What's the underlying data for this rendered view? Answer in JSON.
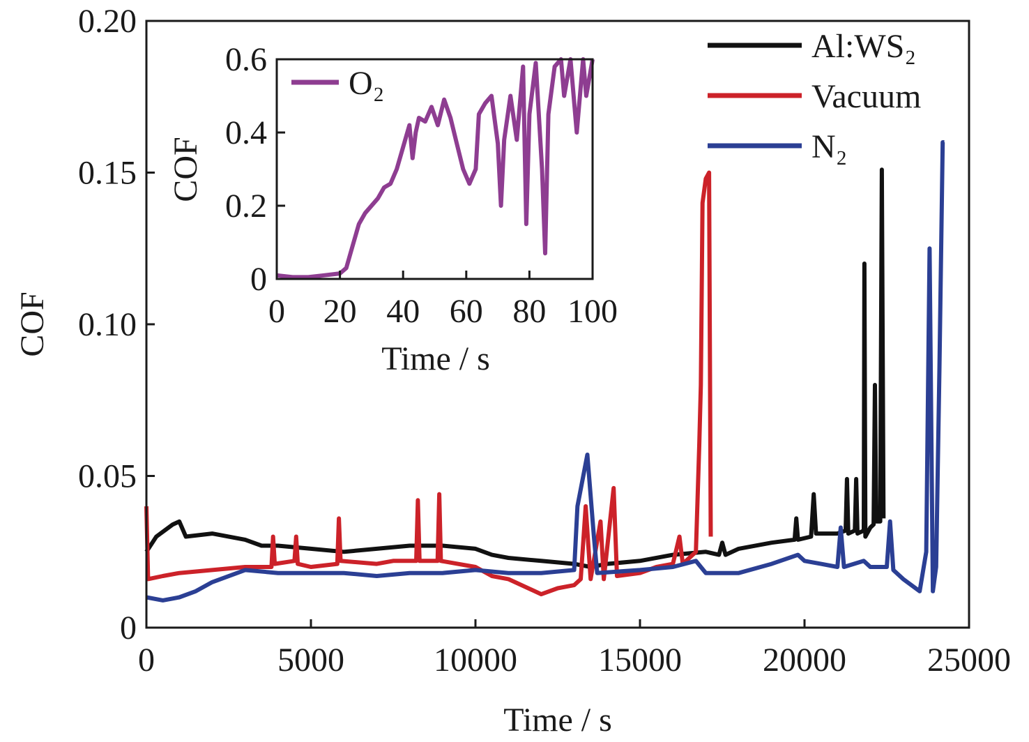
{
  "chart_data": [
    {
      "type": "line",
      "xlabel": "Time / s",
      "ylabel": "COF",
      "xlim": [
        0,
        25000
      ],
      "ylim": [
        0,
        0.2
      ],
      "xticks": [
        "0",
        "5000",
        "10000",
        "15000",
        "20000",
        "25000"
      ],
      "xtick_values": [
        0,
        5000,
        10000,
        15000,
        20000,
        25000
      ],
      "yticks": [
        "0",
        "0.05",
        "0.10",
        "0.15",
        "0.20"
      ],
      "ytick_values": [
        0,
        0.05,
        0.1,
        0.15,
        0.2
      ],
      "legend_placement": "top-right",
      "grid": false,
      "series": [
        {
          "name": "Al:WS₂",
          "color": "#111111",
          "x": [
            0,
            300,
            800,
            1000,
            1200,
            2000,
            3000,
            3500,
            4000,
            5000,
            6000,
            7000,
            8000,
            9000,
            10000,
            10500,
            11000,
            12000,
            13000,
            13500,
            14000,
            15000,
            16000,
            17000,
            17400,
            17500,
            17600,
            18000,
            19000,
            19700,
            19750,
            19800,
            20200,
            20280,
            20350,
            21000,
            21250,
            21290,
            21330,
            21530,
            21570,
            21610,
            21800,
            21820,
            21850,
            22000,
            22100,
            22140,
            22180,
            22300,
            22350,
            22400
          ],
          "y": [
            0.025,
            0.03,
            0.034,
            0.035,
            0.03,
            0.031,
            0.029,
            0.027,
            0.027,
            0.026,
            0.025,
            0.026,
            0.027,
            0.027,
            0.026,
            0.024,
            0.023,
            0.022,
            0.021,
            0.02,
            0.021,
            0.022,
            0.024,
            0.025,
            0.024,
            0.028,
            0.024,
            0.026,
            0.028,
            0.029,
            0.036,
            0.029,
            0.03,
            0.044,
            0.031,
            0.031,
            0.032,
            0.049,
            0.031,
            0.032,
            0.049,
            0.031,
            0.032,
            0.12,
            0.03,
            0.033,
            0.034,
            0.08,
            0.035,
            0.035,
            0.151,
            0.036
          ]
        },
        {
          "name": "Vacuum",
          "color": "#cc2229",
          "x": [
            0,
            50,
            500,
            1000,
            2000,
            3000,
            3800,
            3850,
            3900,
            4500,
            4550,
            4600,
            5000,
            5800,
            5850,
            5900,
            7000,
            7500,
            8200,
            8250,
            8300,
            8850,
            8900,
            8950,
            10000,
            10500,
            11000,
            12000,
            12500,
            13000,
            13200,
            13350,
            13500,
            13800,
            13900,
            14200,
            14300,
            15000,
            15500,
            16000,
            16200,
            16300,
            16500,
            16700,
            16800,
            16850,
            16900,
            17000,
            17100,
            17150
          ],
          "y": [
            0.04,
            0.016,
            0.017,
            0.018,
            0.019,
            0.02,
            0.02,
            0.03,
            0.021,
            0.022,
            0.03,
            0.021,
            0.02,
            0.021,
            0.036,
            0.022,
            0.021,
            0.022,
            0.022,
            0.042,
            0.022,
            0.022,
            0.044,
            0.022,
            0.02,
            0.017,
            0.016,
            0.011,
            0.013,
            0.014,
            0.016,
            0.04,
            0.016,
            0.035,
            0.016,
            0.046,
            0.017,
            0.018,
            0.02,
            0.021,
            0.03,
            0.021,
            0.023,
            0.025,
            0.06,
            0.08,
            0.14,
            0.148,
            0.15,
            0.03
          ]
        },
        {
          "name": "N₂",
          "color": "#2b3f94",
          "x": [
            0,
            500,
            1000,
            1500,
            2000,
            3000,
            4000,
            5000,
            6000,
            7000,
            8000,
            9000,
            10000,
            11000,
            12000,
            13000,
            13100,
            13400,
            13600,
            13700,
            15000,
            16000,
            16700,
            17000,
            18000,
            19000,
            19800,
            20000,
            20500,
            21000,
            21100,
            21200,
            21800,
            22000,
            22500,
            22600,
            22700,
            23000,
            23500,
            23700,
            23800,
            23900,
            24000,
            24100,
            24200,
            24250
          ],
          "y": [
            0.01,
            0.009,
            0.01,
            0.012,
            0.015,
            0.019,
            0.018,
            0.018,
            0.018,
            0.017,
            0.018,
            0.018,
            0.019,
            0.018,
            0.018,
            0.019,
            0.04,
            0.057,
            0.03,
            0.018,
            0.019,
            0.02,
            0.022,
            0.018,
            0.018,
            0.021,
            0.024,
            0.022,
            0.021,
            0.02,
            0.033,
            0.02,
            0.022,
            0.02,
            0.02,
            0.035,
            0.019,
            0.016,
            0.012,
            0.025,
            0.125,
            0.012,
            0.02,
            0.085,
            0.16,
            0.16
          ]
        }
      ]
    },
    {
      "type": "line",
      "xlabel": "Time / s",
      "ylabel": "COF",
      "xlim": [
        0,
        100
      ],
      "ylim": [
        0,
        0.6
      ],
      "xticks": [
        "0",
        "20",
        "40",
        "60",
        "80",
        "100"
      ],
      "xtick_values": [
        0,
        20,
        40,
        60,
        80,
        100
      ],
      "yticks": [
        "0",
        "0.2",
        "0.4",
        "0.6"
      ],
      "ytick_values": [
        0,
        0.2,
        0.4,
        0.6
      ],
      "legend_placement": "top-left",
      "grid": false,
      "series": [
        {
          "name": "O₂",
          "color": "#8e3d91",
          "x": [
            0,
            5,
            10,
            15,
            20,
            22,
            24,
            26,
            28,
            30,
            32,
            34,
            36,
            38,
            40,
            42,
            43,
            44,
            45,
            47,
            49,
            51,
            53,
            55,
            57,
            59,
            61,
            63,
            64,
            66,
            68,
            70,
            71,
            72,
            74,
            76,
            78,
            79,
            80,
            82,
            84,
            85,
            86,
            88,
            90,
            91,
            93,
            95,
            97,
            98,
            100
          ],
          "y": [
            0.01,
            0.005,
            0.005,
            0.01,
            0.015,
            0.03,
            0.09,
            0.15,
            0.18,
            0.2,
            0.22,
            0.25,
            0.26,
            0.3,
            0.36,
            0.42,
            0.33,
            0.4,
            0.44,
            0.43,
            0.47,
            0.42,
            0.49,
            0.44,
            0.37,
            0.3,
            0.26,
            0.3,
            0.45,
            0.48,
            0.5,
            0.37,
            0.2,
            0.38,
            0.5,
            0.38,
            0.58,
            0.15,
            0.45,
            0.59,
            0.3,
            0.07,
            0.45,
            0.58,
            0.6,
            0.5,
            0.6,
            0.4,
            0.6,
            0.5,
            0.6
          ]
        }
      ]
    }
  ]
}
